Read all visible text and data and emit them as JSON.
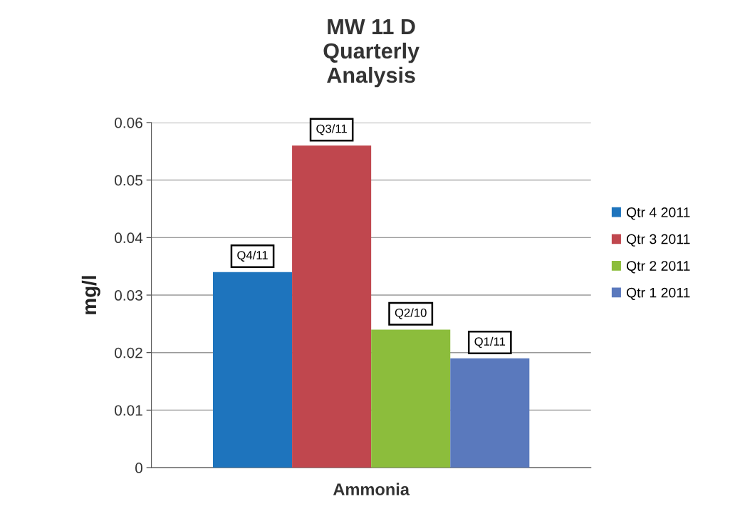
{
  "chart_data": {
    "type": "bar",
    "title": "MW 11 D\nQuarterly\nAnalysis",
    "xlabel": "Ammonia",
    "ylabel": "mg/l",
    "categories": [
      null
    ],
    "series": [
      {
        "name": "Qtr 4 2011",
        "color": "#1e74bd",
        "values": [
          0.034
        ],
        "value_labels": [
          "Q4/11"
        ]
      },
      {
        "name": "Qtr 3 2011",
        "color": "#c0474e",
        "values": [
          0.056
        ],
        "value_labels": [
          "Q3/11"
        ]
      },
      {
        "name": "Qtr 2 2011",
        "color": "#8cbd3c",
        "values": [
          0.024
        ],
        "value_labels": [
          "Q2/10"
        ]
      },
      {
        "name": "Qtr 1 2011",
        "color": "#5a79bd",
        "values": [
          0.019
        ],
        "value_labels": [
          "Q1/11"
        ]
      }
    ],
    "ylim": [
      0,
      0.06
    ],
    "yticks": [
      0,
      0.01,
      0.02,
      0.03,
      0.04,
      0.05,
      0.06
    ],
    "grid": "y",
    "legend": "right"
  }
}
